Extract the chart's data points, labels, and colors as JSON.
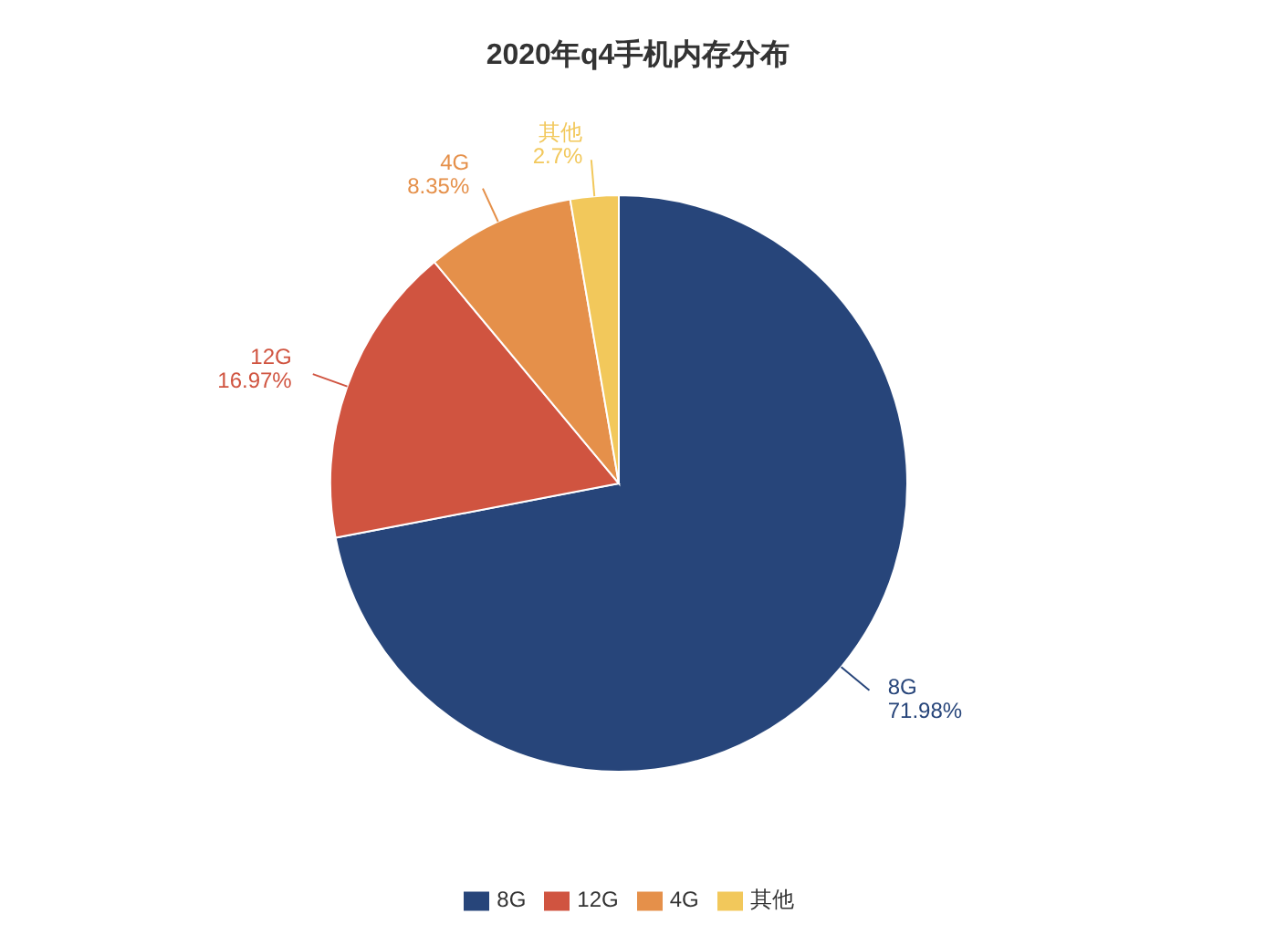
{
  "chart_data": {
    "type": "pie",
    "title": "2020年q4手机内存分布",
    "categories": [
      "8G",
      "12G",
      "4G",
      "其他"
    ],
    "values": [
      71.98,
      16.97,
      8.35,
      2.7
    ],
    "value_labels": [
      "71.98%",
      "16.97%",
      "8.35%",
      "2.7%"
    ],
    "colors": [
      "#27457a",
      "#d05440",
      "#e5904a",
      "#f2c85b"
    ],
    "legend": "bottom"
  }
}
